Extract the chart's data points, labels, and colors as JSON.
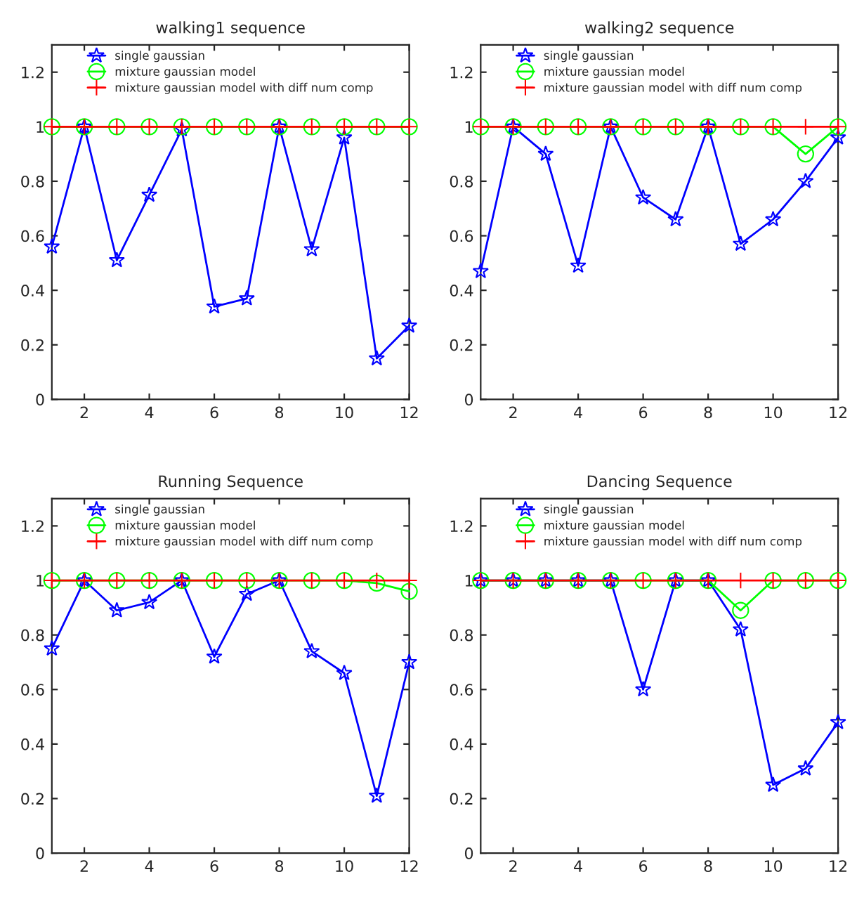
{
  "chart_data": [
    {
      "type": "line",
      "title": "walking1 sequence",
      "x": [
        1,
        2,
        3,
        4,
        5,
        6,
        7,
        8,
        9,
        10,
        11,
        12
      ],
      "xlim": [
        1,
        12
      ],
      "xticks": [
        2,
        4,
        6,
        8,
        10,
        12
      ],
      "ylim": [
        0,
        1.3
      ],
      "yticks": [
        0,
        0.2,
        0.4,
        0.6,
        0.8,
        1,
        1.2
      ],
      "legend": "top",
      "grid": false,
      "series": [
        {
          "name": "single gaussian",
          "color": "#0000ff",
          "marker": "star",
          "values": [
            0.56,
            1.0,
            0.51,
            0.75,
            0.99,
            0.34,
            0.37,
            1.0,
            0.55,
            0.96,
            0.15,
            0.27
          ]
        },
        {
          "name": "mixture gaussian model",
          "color": "#00ff00",
          "marker": "circle",
          "values": [
            1,
            1,
            1,
            1,
            1,
            1,
            1,
            1,
            1,
            1,
            1,
            1
          ]
        },
        {
          "name": "mixture gaussian model with diff num comp",
          "color": "#ff0000",
          "marker": "cross",
          "values": [
            1,
            1,
            1,
            1,
            1,
            1,
            1,
            1,
            1,
            1,
            1,
            1
          ]
        }
      ]
    },
    {
      "type": "line",
      "title": "walking2 sequence",
      "x": [
        1,
        2,
        3,
        4,
        5,
        6,
        7,
        8,
        9,
        10,
        11,
        12
      ],
      "xlim": [
        1,
        12
      ],
      "xticks": [
        2,
        4,
        6,
        8,
        10,
        12
      ],
      "ylim": [
        0,
        1.3
      ],
      "yticks": [
        0,
        0.2,
        0.4,
        0.6,
        0.8,
        1,
        1.2
      ],
      "legend": "top",
      "grid": false,
      "series": [
        {
          "name": "single gaussian",
          "color": "#0000ff",
          "marker": "star",
          "values": [
            0.47,
            1.0,
            0.9,
            0.49,
            1.0,
            0.74,
            0.66,
            1.0,
            0.57,
            0.66,
            0.8,
            0.96
          ]
        },
        {
          "name": "mixture gaussian model",
          "color": "#00ff00",
          "marker": "circle",
          "values": [
            1,
            1,
            1,
            1,
            1,
            1,
            1,
            1,
            1,
            1,
            0.9,
            1
          ]
        },
        {
          "name": "mixture gaussian model with diff num comp",
          "color": "#ff0000",
          "marker": "cross",
          "values": [
            1,
            1,
            1,
            1,
            1,
            1,
            1,
            1,
            1,
            1,
            1,
            1
          ]
        }
      ]
    },
    {
      "type": "line",
      "title": "Running Sequence",
      "x": [
        1,
        2,
        3,
        4,
        5,
        6,
        7,
        8,
        9,
        10,
        11,
        12
      ],
      "xlim": [
        1,
        12
      ],
      "xticks": [
        2,
        4,
        6,
        8,
        10,
        12
      ],
      "ylim": [
        0,
        1.3
      ],
      "yticks": [
        0,
        0.2,
        0.4,
        0.6,
        0.8,
        1,
        1.2
      ],
      "legend": "top",
      "grid": false,
      "series": [
        {
          "name": "single gaussian",
          "color": "#0000ff",
          "marker": "star",
          "values": [
            0.75,
            1.0,
            0.89,
            0.92,
            1.0,
            0.72,
            0.95,
            1.0,
            0.74,
            0.66,
            0.21,
            0.7
          ]
        },
        {
          "name": "mixture gaussian model",
          "color": "#00ff00",
          "marker": "circle",
          "values": [
            1,
            1,
            1,
            1,
            1,
            1,
            1,
            1,
            1,
            1,
            0.99,
            0.96
          ]
        },
        {
          "name": "mixture gaussian model with diff num comp",
          "color": "#ff0000",
          "marker": "cross",
          "values": [
            1,
            1,
            1,
            1,
            1,
            1,
            1,
            1,
            1,
            1,
            1,
            1
          ]
        }
      ]
    },
    {
      "type": "line",
      "title": "Dancing Sequence",
      "x": [
        1,
        2,
        3,
        4,
        5,
        6,
        7,
        8,
        9,
        10,
        11,
        12
      ],
      "xlim": [
        1,
        12
      ],
      "xticks": [
        2,
        4,
        6,
        8,
        10,
        12
      ],
      "ylim": [
        0,
        1.3
      ],
      "yticks": [
        0,
        0.2,
        0.4,
        0.6,
        0.8,
        1,
        1.2
      ],
      "legend": "top",
      "grid": false,
      "series": [
        {
          "name": "single gaussian",
          "color": "#0000ff",
          "marker": "star",
          "values": [
            1,
            1,
            1,
            1,
            1,
            0.6,
            1,
            1,
            0.82,
            0.25,
            0.31,
            0.48
          ]
        },
        {
          "name": "mixture gaussian model",
          "color": "#00ff00",
          "marker": "circle",
          "values": [
            1,
            1,
            1,
            1,
            1,
            1,
            1,
            1,
            0.89,
            1,
            1,
            1
          ]
        },
        {
          "name": "mixture gaussian model with diff num comp",
          "color": "#ff0000",
          "marker": "cross",
          "values": [
            1,
            1,
            1,
            1,
            1,
            1,
            1,
            1,
            1,
            1,
            1,
            1
          ]
        }
      ]
    }
  ]
}
